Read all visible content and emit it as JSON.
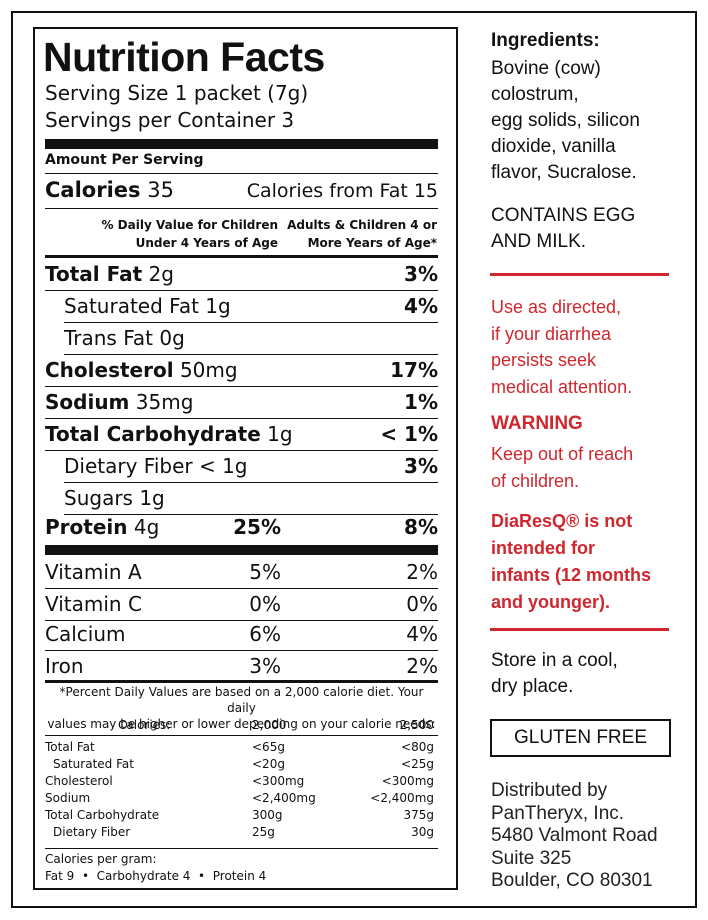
{
  "panel": {
    "title": "Nutrition Facts",
    "serving_size": "Serving Size 1 packet (7g)",
    "servings_per_container": "Servings per Container 3",
    "amount_per_serving": "Amount Per Serving",
    "calories_label": "Calories",
    "calories_value": "35",
    "calories_from_fat": "Calories from Fat 15",
    "dv_children_under4": "% Daily Value for Children\nUnder 4 Years of Age",
    "dv_adults_children4": "Adults & Children 4 or\nMore Years of Age*",
    "nutrients": [
      {
        "name": "Total Fat",
        "amount": "2g",
        "dv_child": "",
        "dv_adult": "3%",
        "bold": true
      },
      {
        "name": "Saturated Fat",
        "amount": "1g",
        "dv_child": "",
        "dv_adult": "4%",
        "bold": false
      },
      {
        "name": "Trans Fat",
        "amount": "0g",
        "dv_child": "",
        "dv_adult": "",
        "bold": false
      },
      {
        "name": "Cholesterol",
        "amount": "50mg",
        "dv_child": "",
        "dv_adult": "17%",
        "bold": true
      },
      {
        "name": "Sodium",
        "amount": "35mg",
        "dv_child": "",
        "dv_adult": "1%",
        "bold": true
      },
      {
        "name": "Total Carbohydrate",
        "amount": "1g",
        "dv_child": "",
        "dv_adult": "< 1%",
        "bold": true
      },
      {
        "name": "Dietary Fiber",
        "amount": "< 1g",
        "dv_child": "",
        "dv_adult": "3%",
        "bold": false
      },
      {
        "name": "Sugars",
        "amount": "1g",
        "dv_child": "",
        "dv_adult": "",
        "bold": false
      },
      {
        "name": "Protein",
        "amount": "4g",
        "dv_child": "25%",
        "dv_adult": "8%",
        "bold": true
      }
    ],
    "vitamins": [
      {
        "name": "Vitamin A",
        "child": "5%",
        "adult": "2%"
      },
      {
        "name": "Vitamin C",
        "child": "0%",
        "adult": "0%"
      },
      {
        "name": "Calcium",
        "child": "6%",
        "adult": "4%"
      },
      {
        "name": "Iron",
        "child": "3%",
        "adult": "2%"
      }
    ],
    "footnote": "*Percent Daily Values are based on a 2,000 calorie diet. Your daily\nvalues may be higher or lower depending on your calorie needs:",
    "calories_row": {
      "label": "Calories:",
      "c1": "2,000",
      "c2": "2,500"
    },
    "dv_table": [
      {
        "label": "Total Fat",
        "c1": "<65g",
        "c2": "<80g"
      },
      {
        "label": "Saturated Fat",
        "c1": "<20g",
        "c2": "<25g"
      },
      {
        "label": "Cholesterol",
        "c1": "<300mg",
        "c2": "<300mg"
      },
      {
        "label": "Sodium",
        "c1": "<2,400mg",
        "c2": "<2,400mg"
      },
      {
        "label": "Total Carbohydrate",
        "c1": "300g",
        "c2": "375g"
      },
      {
        "label": "Dietary Fiber",
        "c1": "25g",
        "c2": "30g"
      }
    ],
    "calories_per_gram": "Calories per gram:",
    "per_gram_line": "Fat 9  •  Carbohydrate 4  •  Protein 4"
  },
  "side": {
    "ingredients_heading": "Ingredients:",
    "ingredients": "Bovine (cow)\ncolostrum,\negg solids, silicon\ndioxide, vanilla\nflavor, Sucralose.",
    "contains": "CONTAINS EGG\nAND MILK.",
    "use_as_directed": "Use as directed,\nif your diarrhea\npersists seek\nmedical attention.",
    "warning_heading": "WARNING",
    "warning_text": "Keep out of reach\nof children.",
    "not_intended": "DiaResQ® is not\nintended for\ninfants (12 months\nand younger).",
    "store": "Store in a cool,\ndry place.",
    "gluten_free": "GLUTEN FREE",
    "distributed": "Distributed by\nPanTheryx, Inc.\n5480 Valmont Road\nSuite 325\nBoulder, CO 80301"
  },
  "colors": {
    "accent_red": "#d0262e",
    "text": "#111111"
  }
}
